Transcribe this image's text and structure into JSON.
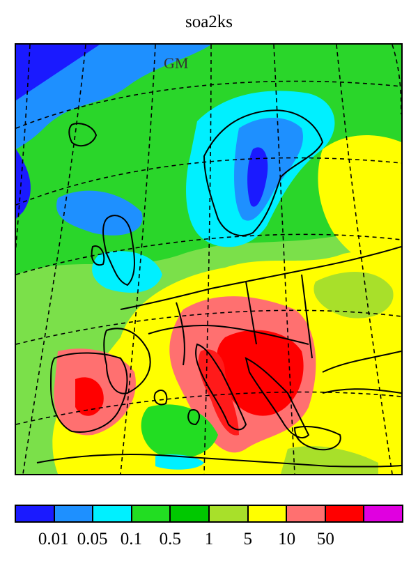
{
  "title": "soa2ks",
  "map_label": "GM",
  "colorbar": {
    "colors": [
      "#1a1aff",
      "#1e90ff",
      "#00f0ff",
      "#22dd22",
      "#00c800",
      "#a8e02a",
      "#ffff00",
      "#ff7070",
      "#ff0000",
      "#e000e0"
    ],
    "tick_labels": [
      "0.01",
      "0.05",
      "0.1",
      "0.5",
      "1",
      "5",
      "10",
      "50"
    ]
  }
}
